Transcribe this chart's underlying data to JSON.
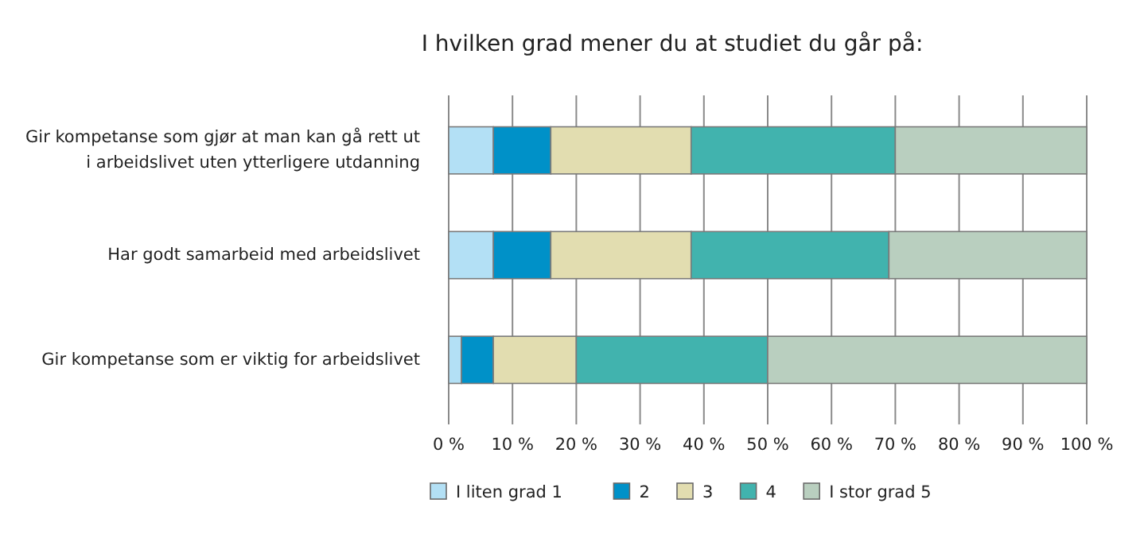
{
  "chart_data": {
    "type": "bar",
    "orientation": "horizontal",
    "stacked": true,
    "title": "I hvilken grad mener du at studiet du går på:",
    "categories": [
      "Gir kompetanse som gjør at man kan gå rett ut i arbeidslivet uten ytterligere utdanning",
      "Har godt samarbeid med arbeidslivet",
      "Gir kompetanse som er viktig for arbeidslivet"
    ],
    "series": [
      {
        "name": "I liten grad 1",
        "color": "#b3e0f5",
        "values": [
          7,
          7,
          2
        ]
      },
      {
        "name": "2",
        "color": "#0091c8",
        "values": [
          9,
          9,
          5
        ]
      },
      {
        "name": "3",
        "color": "#e2ddb0",
        "values": [
          22,
          22,
          13
        ]
      },
      {
        "name": "4",
        "color": "#41b3ae",
        "values": [
          32,
          31,
          30
        ]
      },
      {
        "name": "I stor grad 5",
        "color": "#b9cfbf",
        "values": [
          30,
          31,
          50
        ]
      }
    ],
    "xlim": [
      0,
      100
    ],
    "xticks": [
      {
        "value": 0,
        "label": "0 %"
      },
      {
        "value": 10,
        "label": "10 %"
      },
      {
        "value": 20,
        "label": "20 %"
      },
      {
        "value": 30,
        "label": "30 %"
      },
      {
        "value": 40,
        "label": "40 %"
      },
      {
        "value": 50,
        "label": "50 %"
      },
      {
        "value": 60,
        "label": "60 %"
      },
      {
        "value": 70,
        "label": "70 %"
      },
      {
        "value": 80,
        "label": "80 %"
      },
      {
        "value": 90,
        "label": "90 %"
      },
      {
        "value": 100,
        "label": "100 %"
      }
    ],
    "grid": "x",
    "legend": "bottom"
  }
}
